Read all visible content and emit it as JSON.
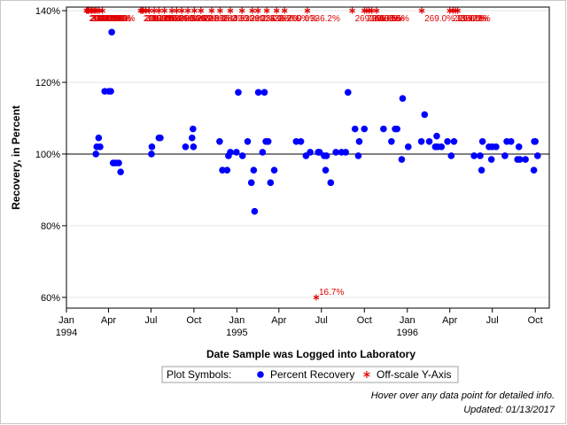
{
  "chart_data": {
    "type": "scatter",
    "title": "",
    "xlabel": "Date Sample was Logged into Laboratory",
    "ylabel": "Recovery, in Percent",
    "xlim": [
      "1994-01-01",
      "1996-10-31"
    ],
    "ylim": [
      57,
      141
    ],
    "reference_line": 100,
    "x_ticks": [
      {
        "date": "1994-01-01",
        "label": "Jan",
        "year": "1994"
      },
      {
        "date": "1994-04-01",
        "label": "Apr",
        "year": ""
      },
      {
        "date": "1994-07-01",
        "label": "Jul",
        "year": ""
      },
      {
        "date": "1994-10-01",
        "label": "Oct",
        "year": ""
      },
      {
        "date": "1995-01-01",
        "label": "Jan",
        "year": "1995"
      },
      {
        "date": "1995-04-01",
        "label": "Apr",
        "year": ""
      },
      {
        "date": "1995-07-01",
        "label": "Jul",
        "year": ""
      },
      {
        "date": "1995-10-01",
        "label": "Oct",
        "year": ""
      },
      {
        "date": "1996-01-01",
        "label": "Jan",
        "year": "1996"
      },
      {
        "date": "1996-04-01",
        "label": "Apr",
        "year": ""
      },
      {
        "date": "1996-07-01",
        "label": "Jul",
        "year": ""
      },
      {
        "date": "1996-10-01",
        "label": "Oct",
        "year": ""
      }
    ],
    "y_ticks": [
      {
        "value": 60,
        "label": "60%"
      },
      {
        "value": 80,
        "label": "80%"
      },
      {
        "value": 100,
        "label": "100%"
      },
      {
        "value": 120,
        "label": "120%"
      },
      {
        "value": 140,
        "label": "140%"
      }
    ],
    "series": [
      {
        "name": "Percent Recovery",
        "marker": "circle",
        "color": "#0000ff",
        "points": [
          {
            "x": "1994-03-05",
            "y": 100
          },
          {
            "x": "1994-03-07",
            "y": 102
          },
          {
            "x": "1994-03-11",
            "y": 104.5
          },
          {
            "x": "1994-03-14",
            "y": 102
          },
          {
            "x": "1994-03-24",
            "y": 117.5
          },
          {
            "x": "1994-04-02",
            "y": 117.5
          },
          {
            "x": "1994-04-06",
            "y": 117.5
          },
          {
            "x": "1994-04-08",
            "y": 134
          },
          {
            "x": "1994-04-11",
            "y": 97.5
          },
          {
            "x": "1994-04-16",
            "y": 97.5
          },
          {
            "x": "1994-04-23",
            "y": 97.5
          },
          {
            "x": "1994-04-27",
            "y": 95
          },
          {
            "x": "1994-07-03",
            "y": 102
          },
          {
            "x": "1994-07-02",
            "y": 100
          },
          {
            "x": "1994-07-18",
            "y": 104.5
          },
          {
            "x": "1994-07-21",
            "y": 104.5
          },
          {
            "x": "1994-09-13",
            "y": 102
          },
          {
            "x": "1994-09-27",
            "y": 104.5
          },
          {
            "x": "1994-09-29",
            "y": 107
          },
          {
            "x": "1994-09-30",
            "y": 102
          },
          {
            "x": "1994-11-25",
            "y": 103.5
          },
          {
            "x": "1994-12-01",
            "y": 95.5
          },
          {
            "x": "1994-12-11",
            "y": 95.5
          },
          {
            "x": "1994-12-14",
            "y": 99.5
          },
          {
            "x": "1994-12-18",
            "y": 100.5
          },
          {
            "x": "1994-12-31",
            "y": 100.5
          },
          {
            "x": "1995-01-04",
            "y": 117.2
          },
          {
            "x": "1995-01-13",
            "y": 99.5
          },
          {
            "x": "1995-01-24",
            "y": 103.5
          },
          {
            "x": "1995-02-01",
            "y": 92
          },
          {
            "x": "1995-02-06",
            "y": 95.5
          },
          {
            "x": "1995-02-08",
            "y": 84
          },
          {
            "x": "1995-02-16",
            "y": 117.2
          },
          {
            "x": "1995-02-25",
            "y": 100.5
          },
          {
            "x": "1995-03-01",
            "y": 117.2
          },
          {
            "x": "1995-03-04",
            "y": 103.5
          },
          {
            "x": "1995-03-09",
            "y": 103.5
          },
          {
            "x": "1995-03-14",
            "y": 92
          },
          {
            "x": "1995-03-22",
            "y": 95.5
          },
          {
            "x": "1995-05-08",
            "y": 103.5
          },
          {
            "x": "1995-05-18",
            "y": 103.5
          },
          {
            "x": "1995-05-29",
            "y": 99.5
          },
          {
            "x": "1995-06-07",
            "y": 100.5
          },
          {
            "x": "1995-06-24",
            "y": 100.5
          },
          {
            "x": "1995-06-27",
            "y": 100.5
          },
          {
            "x": "1995-07-07",
            "y": 99.5
          },
          {
            "x": "1995-07-10",
            "y": 95.5
          },
          {
            "x": "1995-07-12",
            "y": 99.5
          },
          {
            "x": "1995-07-21",
            "y": 92
          },
          {
            "x": "1995-08-01",
            "y": 100.5
          },
          {
            "x": "1995-08-13",
            "y": 100.5
          },
          {
            "x": "1995-08-22",
            "y": 100.5
          },
          {
            "x": "1995-08-27",
            "y": 117.2
          },
          {
            "x": "1995-09-11",
            "y": 107
          },
          {
            "x": "1995-09-18",
            "y": 99.5
          },
          {
            "x": "1995-09-20",
            "y": 103.5
          },
          {
            "x": "1995-10-01",
            "y": 107
          },
          {
            "x": "1995-11-11",
            "y": 107
          },
          {
            "x": "1995-11-28",
            "y": 103.5
          },
          {
            "x": "1995-12-06",
            "y": 107
          },
          {
            "x": "1995-12-10",
            "y": 107
          },
          {
            "x": "1995-12-20",
            "y": 98.5
          },
          {
            "x": "1995-12-22",
            "y": 115.5
          },
          {
            "x": "1996-01-03",
            "y": 102
          },
          {
            "x": "1996-01-31",
            "y": 103.5
          },
          {
            "x": "1996-02-07",
            "y": 111
          },
          {
            "x": "1996-02-17",
            "y": 103.5
          },
          {
            "x": "1996-03-01",
            "y": 102
          },
          {
            "x": "1996-03-04",
            "y": 105
          },
          {
            "x": "1996-03-06",
            "y": 102
          },
          {
            "x": "1996-03-14",
            "y": 102
          },
          {
            "x": "1996-03-27",
            "y": 103.5
          },
          {
            "x": "1996-04-04",
            "y": 99.5
          },
          {
            "x": "1996-04-10",
            "y": 103.5
          },
          {
            "x": "1996-05-23",
            "y": 99.5
          },
          {
            "x": "1996-06-05",
            "y": 99.5
          },
          {
            "x": "1996-06-08",
            "y": 95.5
          },
          {
            "x": "1996-06-10",
            "y": 103.5
          },
          {
            "x": "1996-06-24",
            "y": 102
          },
          {
            "x": "1996-06-29",
            "y": 98.5
          },
          {
            "x": "1996-07-01",
            "y": 102
          },
          {
            "x": "1996-07-09",
            "y": 102
          },
          {
            "x": "1996-07-28",
            "y": 99.5
          },
          {
            "x": "1996-08-01",
            "y": 103.5
          },
          {
            "x": "1996-08-10",
            "y": 103.5
          },
          {
            "x": "1996-08-24",
            "y": 98.5
          },
          {
            "x": "1996-08-27",
            "y": 102
          },
          {
            "x": "1996-08-29",
            "y": 98.5
          },
          {
            "x": "1996-09-10",
            "y": 98.5
          },
          {
            "x": "1996-09-28",
            "y": 95.5
          },
          {
            "x": "1996-09-29",
            "y": 103.5
          },
          {
            "x": "1996-10-01",
            "y": 103.5
          },
          {
            "x": "1996-10-06",
            "y": 99.5
          }
        ]
      },
      {
        "name": "Off-scale Y-Axis",
        "marker": "star",
        "color": "#e00000",
        "points": [
          {
            "x": "1994-02-13",
            "y": 140,
            "label": "201.0%"
          },
          {
            "x": "1994-02-15",
            "y": 140,
            "label": "201.0%"
          },
          {
            "x": "1994-02-17",
            "y": 140,
            "label": "336.2%"
          },
          {
            "x": "1994-02-19",
            "y": 140,
            "label": "284.3%"
          },
          {
            "x": "1994-02-23",
            "y": 140,
            "label": "201.0%"
          },
          {
            "x": "1994-02-25",
            "y": 140,
            "label": "336.2%"
          },
          {
            "x": "1994-03-01",
            "y": 140,
            "label": "269.0%"
          },
          {
            "x": "1994-03-04",
            "y": 140,
            "label": "284.3%"
          },
          {
            "x": "1994-03-08",
            "y": 140,
            "label": "284.3%"
          },
          {
            "x": "1994-03-12",
            "y": 140,
            "label": "201.0%"
          },
          {
            "x": "1994-03-19",
            "y": 140,
            "label": "269.0%"
          },
          {
            "x": "1994-06-09",
            "y": 140,
            "label": "201.0%"
          },
          {
            "x": "1994-06-12",
            "y": 140,
            "label": "284.3%"
          },
          {
            "x": "1994-06-15",
            "y": 140,
            "label": "336.2%"
          },
          {
            "x": "1994-06-20",
            "y": 140,
            "label": "201.0%"
          },
          {
            "x": "1994-06-27",
            "y": 140,
            "label": "269.0%"
          },
          {
            "x": "1994-07-08",
            "y": 140,
            "label": "284.3%"
          },
          {
            "x": "1994-07-18",
            "y": 140,
            "label": "336.2%"
          },
          {
            "x": "1994-07-30",
            "y": 140,
            "label": "201.0%"
          },
          {
            "x": "1994-08-15",
            "y": 140,
            "label": "269.0%"
          },
          {
            "x": "1994-08-25",
            "y": 140,
            "label": "336.2%"
          },
          {
            "x": "1994-09-05",
            "y": 140,
            "label": "284.3%"
          },
          {
            "x": "1994-09-18",
            "y": 140,
            "label": "336.2%"
          },
          {
            "x": "1994-10-02",
            "y": 140,
            "label": "269.0%"
          },
          {
            "x": "1994-10-16",
            "y": 140,
            "label": "201.0%"
          },
          {
            "x": "1994-11-08",
            "y": 140,
            "label": "336.2%"
          },
          {
            "x": "1994-11-26",
            "y": 140,
            "label": "284.3%"
          },
          {
            "x": "1994-12-18",
            "y": 140,
            "label": "336.2%"
          },
          {
            "x": "1995-01-12",
            "y": 140,
            "label": "336.2%"
          },
          {
            "x": "1995-02-03",
            "y": 140,
            "label": "201.0%"
          },
          {
            "x": "1995-02-15",
            "y": 140,
            "label": "336.2%"
          },
          {
            "x": "1995-03-06",
            "y": 140,
            "label": "336.2%"
          },
          {
            "x": "1995-03-27",
            "y": 140,
            "label": "269.0%"
          },
          {
            "x": "1995-04-13",
            "y": 140,
            "label": "269.0%"
          },
          {
            "x": "1995-06-01",
            "y": 140,
            "label": "336.2%"
          },
          {
            "x": "1995-06-20",
            "y": 60,
            "label": "16.7%"
          },
          {
            "x": "1995-09-05",
            "y": 140,
            "label": "269.0%"
          },
          {
            "x": "1995-10-01",
            "y": 140,
            "label": "269.0%"
          },
          {
            "x": "1995-10-06",
            "y": 140,
            "label": "269.0%"
          },
          {
            "x": "1995-10-11",
            "y": 140,
            "label": "269.0%"
          },
          {
            "x": "1995-10-17",
            "y": 140,
            "label": "403.5%"
          },
          {
            "x": "1995-10-27",
            "y": 140,
            "label": "403.5%"
          },
          {
            "x": "1996-02-01",
            "y": 140,
            "label": "269.0%"
          },
          {
            "x": "1996-04-01",
            "y": 140,
            "label": "269.0%"
          },
          {
            "x": "1996-04-08",
            "y": 140,
            "label": "336.2%"
          },
          {
            "x": "1996-04-13",
            "y": 140,
            "label": "269.0%"
          },
          {
            "x": "1996-04-18",
            "y": 140,
            "label": "336.2%"
          }
        ]
      }
    ],
    "legend": {
      "title": "Plot Symbols:",
      "placement": "bottom",
      "entries": [
        "Percent Recovery",
        "Off-scale Y-Axis"
      ]
    }
  },
  "footnotes": {
    "hover": "Hover over any data point for detailed info.",
    "updated": "Updated: 01/13/2017"
  }
}
